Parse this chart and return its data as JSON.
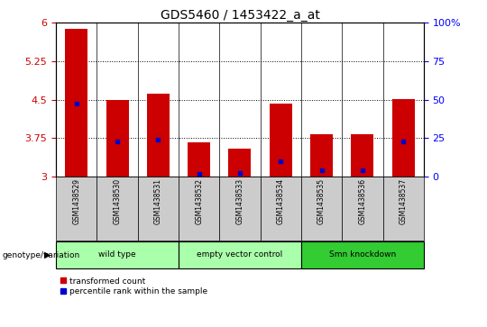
{
  "title": "GDS5460 / 1453422_a_at",
  "samples": [
    "GSM1438529",
    "GSM1438530",
    "GSM1438531",
    "GSM1438532",
    "GSM1438533",
    "GSM1438534",
    "GSM1438535",
    "GSM1438536",
    "GSM1438537"
  ],
  "red_bar_tops": [
    5.88,
    4.5,
    4.62,
    3.67,
    3.55,
    4.42,
    3.82,
    3.82,
    4.52
  ],
  "blue_marker_values": [
    4.42,
    3.68,
    3.72,
    3.06,
    3.07,
    3.3,
    3.12,
    3.12,
    3.68
  ],
  "ymin": 3.0,
  "ymax": 6.0,
  "yticks": [
    3.0,
    3.75,
    4.5,
    5.25,
    6.0
  ],
  "ytick_labels": [
    "3",
    "3.75",
    "4.5",
    "5.25",
    "6"
  ],
  "y2ticks": [
    0,
    25,
    50,
    75,
    100
  ],
  "y2tick_labels": [
    "0",
    "25",
    "50",
    "75",
    "100%"
  ],
  "bar_color": "#cc0000",
  "blue_color": "#0000cc",
  "left_label": "genotype/variation",
  "legend_red": "transformed count",
  "legend_blue": "percentile rank within the sample",
  "bar_width": 0.55,
  "group_spans": [
    {
      "label": "wild type",
      "start": 0,
      "end": 2,
      "color": "#aaffaa"
    },
    {
      "label": "empty vector control",
      "start": 3,
      "end": 5,
      "color": "#aaffaa"
    },
    {
      "label": "Smn knockdown",
      "start": 6,
      "end": 8,
      "color": "#33cc33"
    }
  ]
}
